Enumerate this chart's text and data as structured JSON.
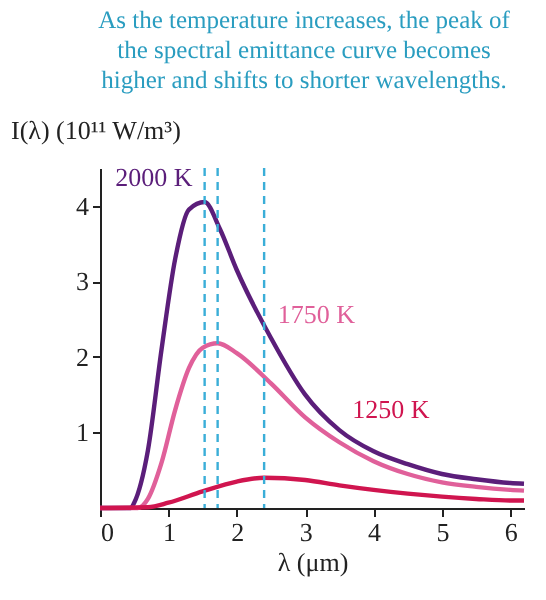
{
  "chart_data": {
    "type": "line",
    "annotations": [
      "As the temperature increases, the peak of the spectral emittance curve becomes higher and shifts to shorter wavelengths."
    ],
    "xlabel": "λ (μm)",
    "ylabel": "I(λ) (10¹¹ W/m³)",
    "xlim": [
      0,
      6.2
    ],
    "ylim": [
      0,
      4.5
    ],
    "xticks": [
      0,
      1,
      2,
      3,
      4,
      5,
      6
    ],
    "yticks": [
      1,
      2,
      3,
      4
    ],
    "grid": false,
    "legend": false,
    "series": [
      {
        "name": "2000 K",
        "color": "#5b1e7a",
        "x": [
          0,
          0.45,
          0.5,
          0.7,
          0.9,
          1.1,
          1.3,
          1.53,
          1.75,
          2,
          2.5,
          3,
          3.5,
          4,
          4.5,
          5,
          5.5,
          6,
          6.2
        ],
        "values": [
          0,
          0,
          0.07,
          0.76,
          2.1,
          3.3,
          3.95,
          4.05,
          3.7,
          3.15,
          2.25,
          1.5,
          1.03,
          0.75,
          0.58,
          0.45,
          0.38,
          0.33,
          0.32
        ]
      },
      {
        "name": "1750 K",
        "color": "#e0609a",
        "x": [
          0,
          0.55,
          0.7,
          0.9,
          1.1,
          1.3,
          1.5,
          1.72,
          2,
          2.5,
          3,
          3.5,
          4,
          4.5,
          5,
          5.5,
          6,
          6.2
        ],
        "values": [
          0,
          0,
          0.12,
          0.6,
          1.3,
          1.85,
          2.12,
          2.18,
          2.05,
          1.65,
          1.2,
          0.87,
          0.62,
          0.45,
          0.34,
          0.28,
          0.24,
          0.23
        ]
      },
      {
        "name": "1250 K",
        "color": "#d0154f",
        "x": [
          0,
          0.7,
          1,
          1.5,
          2,
          2.4,
          3,
          3.5,
          4,
          4.5,
          5,
          5.5,
          6,
          6.2
        ],
        "values": [
          0,
          0.01,
          0.07,
          0.22,
          0.35,
          0.4,
          0.37,
          0.3,
          0.24,
          0.19,
          0.15,
          0.12,
          0.1,
          0.1
        ]
      }
    ],
    "ref_lines": [
      {
        "axis": "x",
        "value": 1.53,
        "color": "#3aaed8",
        "line_style": "dashed"
      },
      {
        "axis": "x",
        "value": 1.72,
        "color": "#3aaed8",
        "line_style": "dashed"
      },
      {
        "axis": "x",
        "value": 2.4,
        "color": "#3aaed8",
        "line_style": "dashed"
      }
    ]
  }
}
